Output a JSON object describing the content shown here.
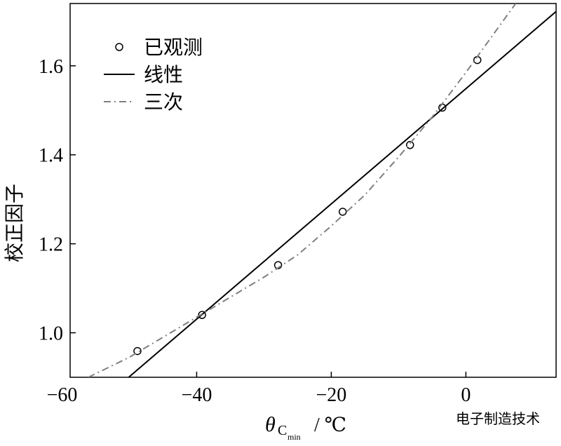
{
  "chart_data": {
    "type": "line",
    "xlabel": "θ",
    "xlabel_sub": "C",
    "xlabel_subsub": "min",
    "xlabel_unit": "/ ℃",
    "ylabel": "校正因子",
    "watermark": "电子制造技术",
    "xlim": [
      -58.8,
      13.4
    ],
    "ylim": [
      0.9,
      1.74
    ],
    "xticks": [
      {
        "value": -60,
        "label": "−60"
      },
      {
        "value": -40,
        "label": "−40"
      },
      {
        "value": -20,
        "label": "−20"
      },
      {
        "value": 0,
        "label": "0"
      }
    ],
    "yticks": [
      {
        "value": 1.0,
        "label": "1.0"
      },
      1.2,
      1.4,
      1.6
    ],
    "legend": "upper left",
    "series": [
      {
        "name": "已观测",
        "color": "#000000",
        "marker": "circle",
        "dash": "none",
        "x": [
          -48.8,
          -39.2,
          -27.9,
          -18.3,
          -8.3,
          -3.5,
          1.7
        ],
        "values": [
          0.959,
          1.04,
          1.152,
          1.272,
          1.422,
          1.506,
          1.613
        ]
      },
      {
        "name": "线性",
        "color": "#000000",
        "marker": "none",
        "dash": "solid",
        "x": [
          -50.1,
          13.4
        ],
        "values": [
          0.9,
          1.722
        ]
      },
      {
        "name": "三次",
        "color": "#808080",
        "marker": "none",
        "dash": "dashdot",
        "x": [
          -56.1,
          -50,
          -45,
          -40,
          -35,
          -30,
          -25,
          -20,
          -15,
          -10,
          -5,
          0,
          5,
          7.4
        ],
        "values": [
          0.9,
          0.945,
          0.99,
          1.035,
          1.08,
          1.125,
          1.175,
          1.24,
          1.31,
          1.395,
          1.485,
          1.585,
          1.69,
          1.74
        ]
      }
    ]
  }
}
